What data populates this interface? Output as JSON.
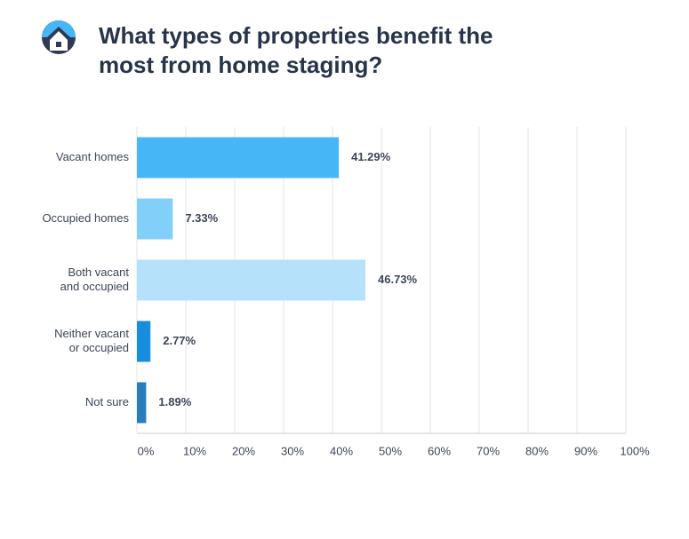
{
  "chart_data": {
    "type": "hbar",
    "title": [
      "What types of properties benefit the",
      "most from home staging?"
    ],
    "categories": [
      [
        "Vacant homes"
      ],
      [
        "Occupied homes"
      ],
      [
        "Both vacant",
        "and occupied"
      ],
      [
        "Neither vacant",
        "or occupied"
      ],
      [
        "Not sure"
      ]
    ],
    "values": [
      41.29,
      7.33,
      46.73,
      2.77,
      1.89
    ],
    "value_labels": [
      "41.29%",
      "7.33%",
      "46.73%",
      "2.77%",
      "1.89%"
    ],
    "colors": [
      "#47b6f7",
      "#82cffa",
      "#b5e1fb",
      "#178ddd",
      "#2a7dbd"
    ],
    "xlim": [
      0,
      100
    ],
    "xticks": [
      {
        "value": 0,
        "label": "0%"
      },
      {
        "value": 10,
        "label": "10%"
      },
      {
        "value": 20,
        "label": "20%"
      },
      {
        "value": 30,
        "label": "30%"
      },
      {
        "value": 40,
        "label": "40%"
      },
      {
        "value": 50,
        "label": "50%"
      },
      {
        "value": 60,
        "label": "60%"
      },
      {
        "value": 70,
        "label": "70%"
      },
      {
        "value": 80,
        "label": "80%"
      },
      {
        "value": 90,
        "label": "90%"
      },
      {
        "value": 100,
        "label": "100%"
      }
    ],
    "grid": true
  }
}
